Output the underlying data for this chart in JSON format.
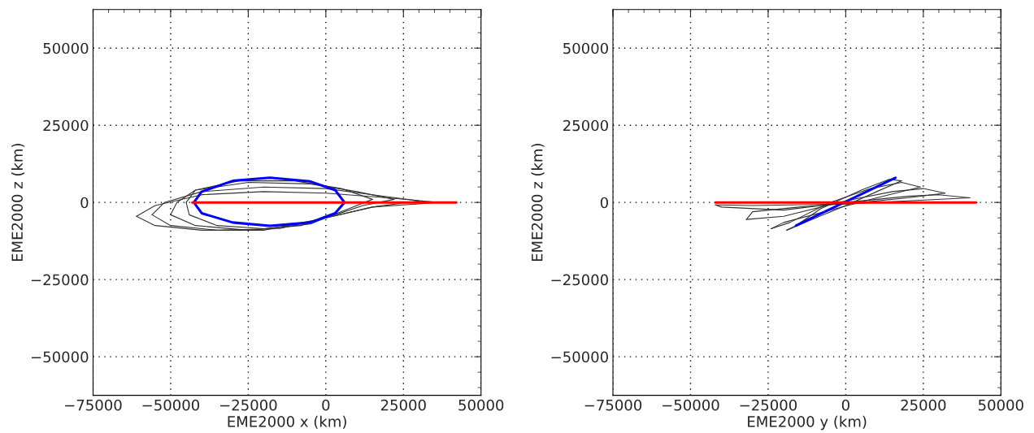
{
  "chart_data": [
    {
      "type": "line",
      "xlabel": "EME2000 x (km)",
      "ylabel": "EME2000 z (km)",
      "xlim": [
        -75000,
        50000
      ],
      "ylim": [
        -62500,
        62500
      ],
      "xticks": [
        -75000,
        -50000,
        -25000,
        0,
        25000,
        50000
      ],
      "yticks": [
        -50000,
        -25000,
        0,
        25000,
        50000
      ],
      "grid": true,
      "legend": false,
      "line_style": "solid",
      "marker": "none",
      "series": [
        {
          "color": "#333333",
          "x": [
            36000,
            20000,
            0,
            -20000,
            -40000,
            -55000,
            -61000
          ],
          "values": [
            0,
            1500,
            3000,
            3500,
            2500,
            -1000,
            -4500
          ]
        },
        {
          "color": "#333333",
          "x": [
            -61000,
            -55000,
            -40000,
            -20000,
            0,
            15000,
            36000
          ],
          "values": [
            -4500,
            -7500,
            -9000,
            -9000,
            -5000,
            -1500,
            0
          ]
        },
        {
          "color": "#333333",
          "x": [
            30000,
            15000,
            0,
            -20000,
            -40000,
            -52000,
            -56000
          ],
          "values": [
            500,
            2500,
            4500,
            5000,
            3500,
            0,
            -4000
          ]
        },
        {
          "color": "#333333",
          "x": [
            -56000,
            -50000,
            -35000,
            -15000,
            0,
            15000,
            30000
          ],
          "values": [
            -4000,
            -7500,
            -9000,
            -8500,
            -5000,
            -1500,
            500
          ]
        },
        {
          "color": "#333333",
          "x": [
            22000,
            10000,
            -5000,
            -25000,
            -42000,
            -48000,
            -50000
          ],
          "values": [
            1000,
            3500,
            6000,
            6500,
            4000,
            0,
            -4000
          ]
        },
        {
          "color": "#333333",
          "x": [
            -50000,
            -42000,
            -25000,
            -8000,
            3000,
            12000,
            22000
          ],
          "values": [
            -4000,
            -7500,
            -9000,
            -7500,
            -4000,
            -1000,
            1000
          ]
        },
        {
          "color": "#333333",
          "x": [
            15000,
            5000,
            -10000,
            -28000,
            -42000,
            -45000
          ],
          "values": [
            1000,
            4500,
            7000,
            7000,
            4000,
            0
          ]
        },
        {
          "color": "#333333",
          "x": [
            -45000,
            -44000,
            -35000,
            -20000,
            -5000,
            5000,
            15000
          ],
          "values": [
            0,
            -4000,
            -7500,
            -8500,
            -7000,
            -3000,
            1000
          ]
        },
        {
          "color": "#0000ff",
          "x": [
            6000,
            3000,
            -5000,
            -18000,
            -30000,
            -40000,
            -42500
          ],
          "values": [
            0,
            4000,
            6800,
            8000,
            7000,
            3500,
            0
          ]
        },
        {
          "color": "#0000ff",
          "x": [
            -42500,
            -40000,
            -30000,
            -18000,
            -5000,
            3000,
            6000
          ],
          "values": [
            0,
            -3500,
            -6500,
            -7600,
            -6500,
            -3500,
            0
          ]
        },
        {
          "color": "#ff0000",
          "x": [
            -43000,
            42000
          ],
          "values": [
            0,
            0
          ]
        }
      ]
    },
    {
      "type": "line",
      "xlabel": "EME2000 y (km)",
      "ylabel": "EME2000 z (km)",
      "xlim": [
        -75000,
        50000
      ],
      "ylim": [
        -62500,
        62500
      ],
      "xticks": [
        -75000,
        -50000,
        -25000,
        0,
        25000,
        50000
      ],
      "yticks": [
        -50000,
        -25000,
        0,
        25000,
        50000
      ],
      "grid": true,
      "legend": false,
      "line_style": "solid",
      "marker": "none",
      "series": [
        {
          "color": "#333333",
          "x": [
            40000,
            30000,
            20000,
            0,
            -20000,
            -40000,
            -42000
          ],
          "values": [
            1500,
            2500,
            2000,
            0,
            -2500,
            -1500,
            -800
          ]
        },
        {
          "color": "#333333",
          "x": [
            -42000,
            -30000,
            0,
            20000,
            40000
          ],
          "values": [
            -800,
            -1000,
            -500,
            500,
            1500
          ]
        },
        {
          "color": "#333333",
          "x": [
            32000,
            25000,
            15000,
            0,
            -20000,
            -32000
          ],
          "values": [
            3000,
            4500,
            3500,
            500,
            -4500,
            -5500
          ]
        },
        {
          "color": "#333333",
          "x": [
            -32000,
            -30000,
            -15000,
            5000,
            20000,
            32000
          ],
          "values": [
            -5500,
            -3000,
            -1500,
            0,
            1500,
            3000
          ]
        },
        {
          "color": "#333333",
          "x": [
            24000,
            18000,
            8000,
            -5000,
            -18000,
            -24000
          ],
          "values": [
            5000,
            6500,
            4500,
            0,
            -6500,
            -8500
          ]
        },
        {
          "color": "#333333",
          "x": [
            -24000,
            -20000,
            -5000,
            10000,
            24000
          ],
          "values": [
            -8500,
            -6500,
            -2500,
            1500,
            5000
          ]
        },
        {
          "color": "#333333",
          "x": [
            18000,
            14000,
            5000,
            -8000,
            -16000,
            -19000
          ],
          "values": [
            7000,
            7500,
            4000,
            -2000,
            -7500,
            -9000
          ]
        },
        {
          "color": "#333333",
          "x": [
            -19000,
            -12000,
            0,
            10000,
            18000
          ],
          "values": [
            -9000,
            -6000,
            -1000,
            3500,
            7000
          ]
        },
        {
          "color": "#0000ff",
          "x": [
            -16000,
            16000
          ],
          "values": [
            -7500,
            8000
          ]
        },
        {
          "color": "#ff0000",
          "x": [
            -42000,
            42000
          ],
          "values": [
            0,
            0
          ]
        }
      ]
    }
  ]
}
